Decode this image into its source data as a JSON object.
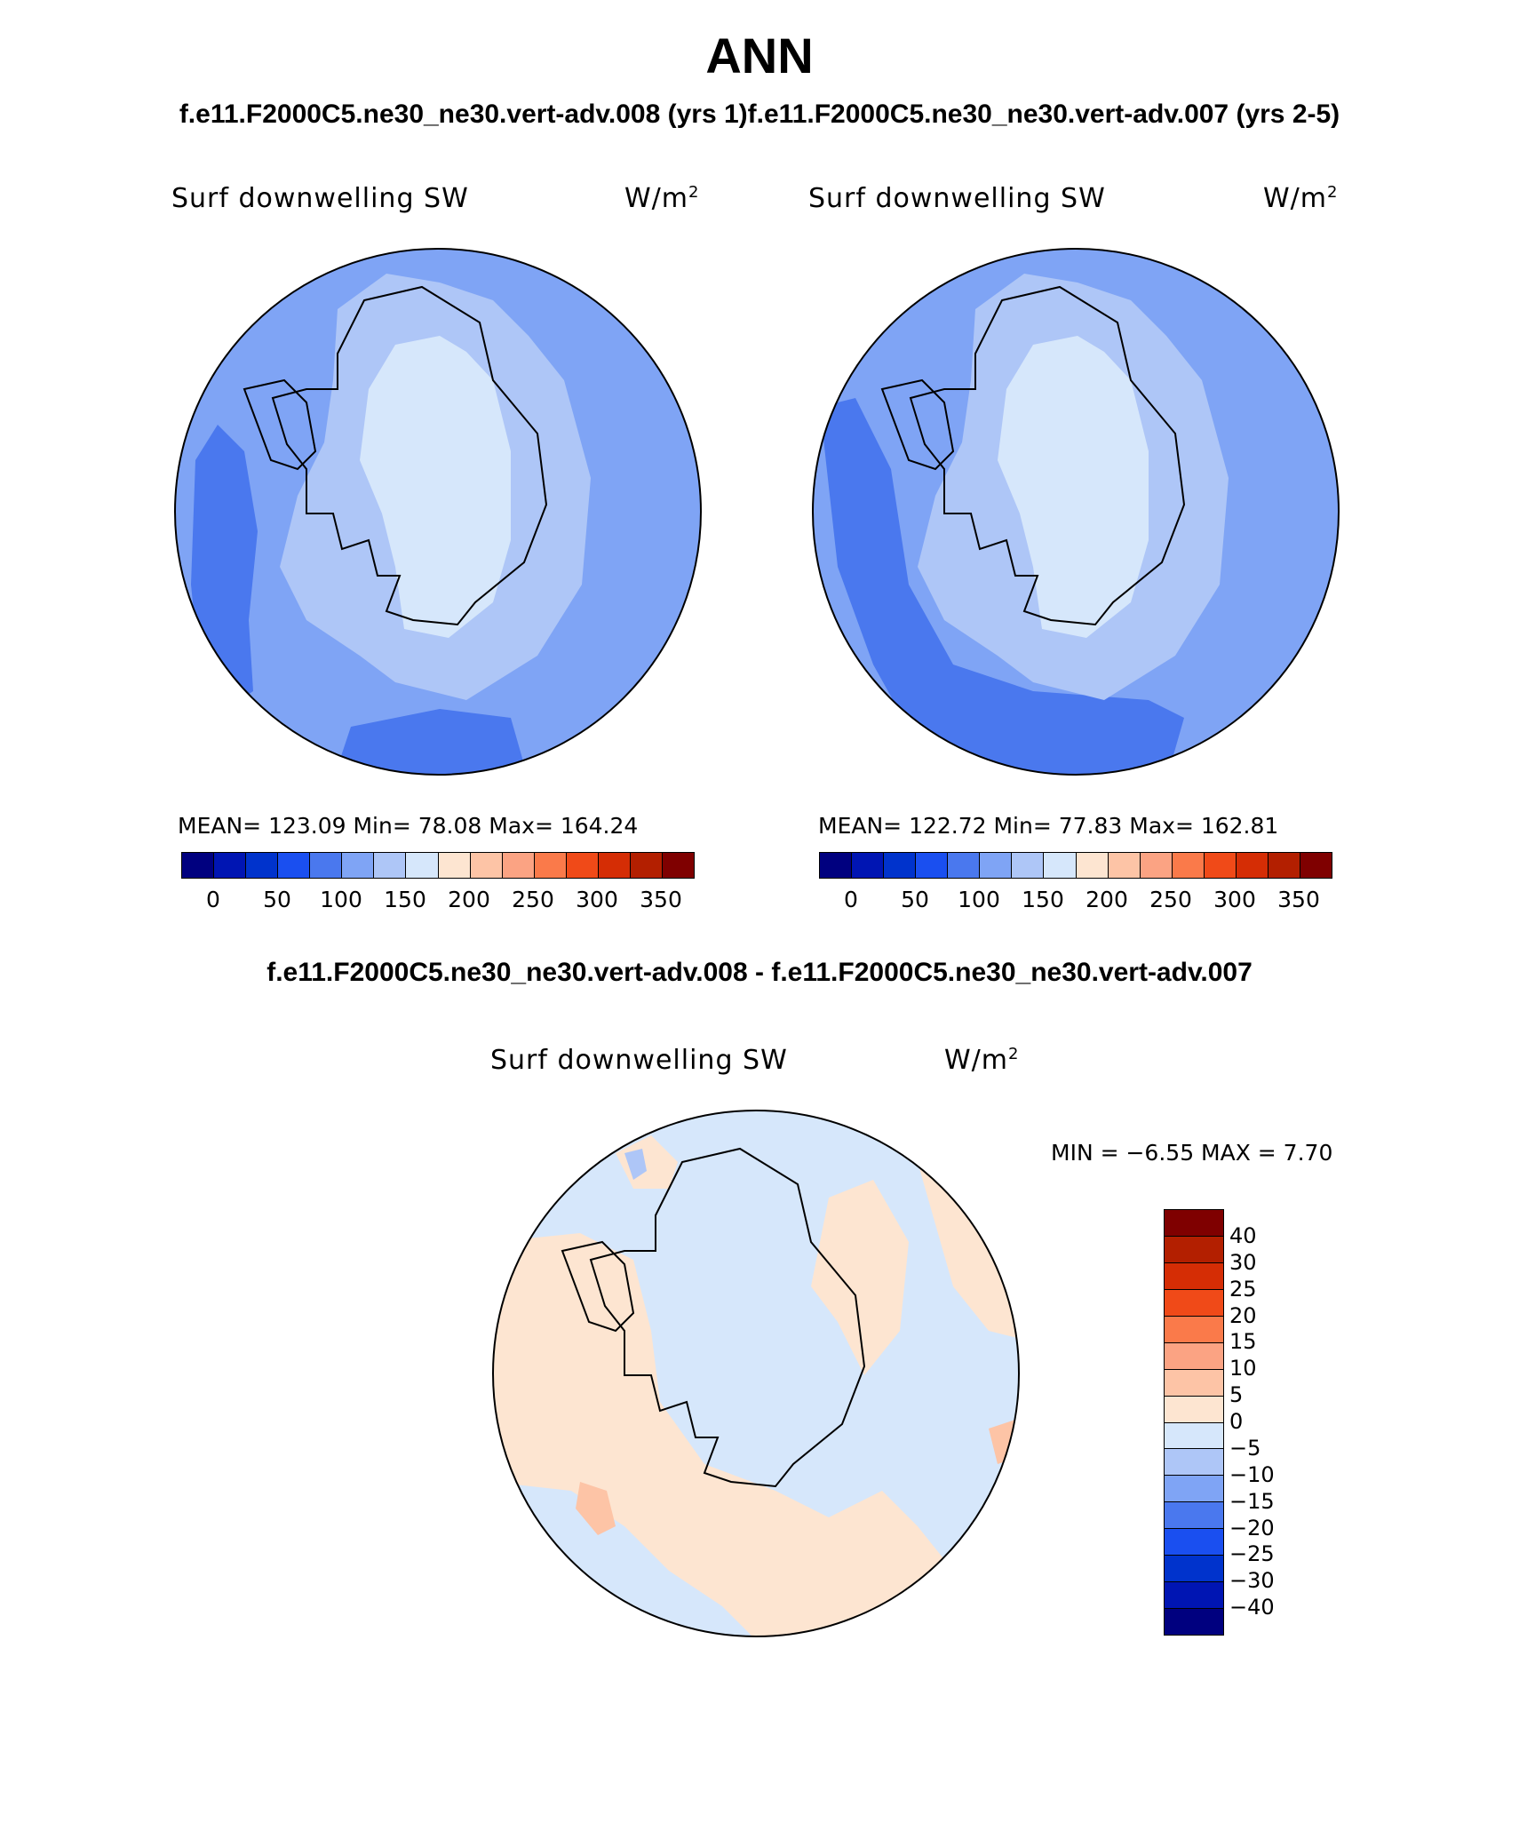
{
  "title": "ANN",
  "subtitle": "f.e11.F2000C5.ne30_ne30.vert-adv.008 (yrs 1)f.e11.F2000C5.ne30_ne30.vert-adv.007 (yrs 2-5)",
  "diff_title": "f.e11.F2000C5.ne30_ne30.vert-adv.008 - f.e11.F2000C5.ne30_ne30.vert-adv.007",
  "panels": [
    {
      "variable": "Surf downwelling SW",
      "units_base": "W/m",
      "units_exp": "2",
      "stats": "MEAN= 123.09   Min=   78.08   Max= 164.24"
    },
    {
      "variable": "Surf downwelling SW",
      "units_base": "W/m",
      "units_exp": "2",
      "stats": "MEAN= 122.72   Min=   77.83   Max= 162.81"
    }
  ],
  "diff_panel": {
    "variable": "Surf downwelling SW",
    "units_base": "W/m",
    "units_exp": "2",
    "stats": "MIN =   −6.55 MAX =     7.70"
  },
  "colorbar_abs": {
    "colors": [
      "#00007f",
      "#0015b3",
      "#0033cc",
      "#1a4ff0",
      "#4a78ee",
      "#7fa4f5",
      "#aec6f7",
      "#d6e7fb",
      "#fde5d1",
      "#fdc4a6",
      "#fba383",
      "#fa7a4a",
      "#f04a18",
      "#d52d05",
      "#b31f00",
      "#7f0000"
    ],
    "labels": [
      "0",
      "50",
      "100",
      "150",
      "200",
      "250",
      "300",
      "350"
    ]
  },
  "colorbar_diff": {
    "colors_top_to_bottom": [
      "#7f0000",
      "#b31f00",
      "#d52d05",
      "#f04a18",
      "#fa7a4a",
      "#fba383",
      "#fdc4a6",
      "#fde5d1",
      "#d6e7fb",
      "#aec6f7",
      "#7fa4f5",
      "#4a78ee",
      "#1a4ff0",
      "#0033cc",
      "#0015b3",
      "#00007f"
    ],
    "labels": [
      "40",
      "30",
      "25",
      "20",
      "15",
      "10",
      "5",
      "0",
      "−5",
      "−10",
      "−15",
      "−20",
      "−25",
      "−30",
      "−40"
    ]
  }
}
